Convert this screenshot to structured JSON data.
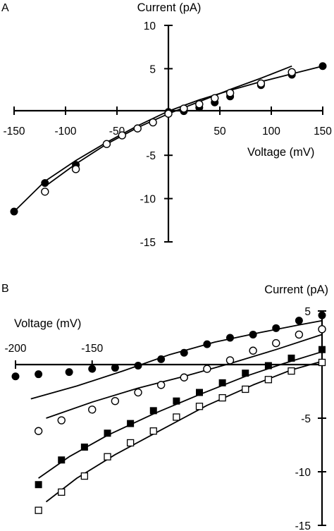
{
  "chart_data": [
    {
      "type": "scatter",
      "panel_label": "A",
      "xlabel": "Voltage (mV)",
      "ylabel": "Current (pA)",
      "xlim": [
        -150,
        150
      ],
      "ylim": [
        -15,
        10
      ],
      "x_ticks": [
        -150,
        -100,
        -50,
        50,
        100,
        150
      ],
      "y_ticks": [
        10,
        5,
        -5,
        -10,
        -15
      ],
      "series": [
        {
          "marker": "filled-circle",
          "points": [
            [
              -150,
              -11.5
            ],
            [
              -120,
              -8.2
            ],
            [
              -90,
              -6.1
            ],
            [
              0,
              0
            ],
            [
              15,
              0.1
            ],
            [
              30,
              0.5
            ],
            [
              45,
              1.1
            ],
            [
              60,
              1.8
            ],
            [
              90,
              3.1
            ],
            [
              120,
              4.3
            ],
            [
              150,
              5.3
            ]
          ]
        },
        {
          "marker": "open-circle",
          "points": [
            [
              -120,
              -9.2
            ],
            [
              -90,
              -6.6
            ],
            [
              -60,
              -3.7
            ],
            [
              -45,
              -2.7
            ],
            [
              -30,
              -1.9
            ],
            [
              -15,
              -1.2
            ],
            [
              0,
              -0.2
            ],
            [
              15,
              0.4
            ],
            [
              30,
              0.9
            ],
            [
              45,
              1.6
            ],
            [
              60,
              2.2
            ],
            [
              90,
              3.3
            ],
            [
              120,
              4.6
            ]
          ]
        }
      ],
      "fits": [
        {
          "style": "solid",
          "points": [
            [
              -150,
              -11.5
            ],
            [
              -120,
              -8.0
            ],
            [
              -90,
              -5.6
            ],
            [
              -60,
              -3.5
            ],
            [
              -30,
              -1.6
            ],
            [
              0,
              0.1
            ],
            [
              30,
              1.4
            ],
            [
              60,
              2.5
            ],
            [
              90,
              3.5
            ],
            [
              120,
              4.4
            ],
            [
              150,
              5.3
            ]
          ]
        },
        {
          "style": "solid",
          "points": [
            [
              -120,
              -8.6
            ],
            [
              -90,
              -6.0
            ],
            [
              -60,
              -3.7
            ],
            [
              -30,
              -1.8
            ],
            [
              0,
              -0.2
            ],
            [
              30,
              1.2
            ],
            [
              60,
              2.6
            ],
            [
              90,
              3.9
            ],
            [
              120,
              5.3
            ]
          ]
        }
      ]
    },
    {
      "type": "scatter",
      "panel_label": "B",
      "xlabel": "Voltage (mV)",
      "ylabel": "Current (pA)",
      "xlim": [
        -200,
        0
      ],
      "ylim": [
        -15,
        5
      ],
      "x_ticks": [
        -200,
        -150
      ],
      "y_ticks": [
        5,
        -5,
        -10,
        -15
      ],
      "series": [
        {
          "marker": "filled-circle",
          "points": [
            [
              -200,
              -1.1
            ],
            [
              -185,
              -0.9
            ],
            [
              -165,
              -0.7
            ],
            [
              -150,
              -0.4
            ],
            [
              -135,
              -0.3
            ],
            [
              -120,
              -0.1
            ],
            [
              -105,
              0.5
            ],
            [
              -90,
              1.1
            ],
            [
              -75,
              1.9
            ],
            [
              -60,
              2.5
            ],
            [
              -45,
              2.8
            ],
            [
              -30,
              3.4
            ],
            [
              -15,
              4.1
            ],
            [
              0,
              4.6
            ]
          ]
        },
        {
          "marker": "open-circle",
          "points": [
            [
              -185,
              -6.2
            ],
            [
              -170,
              -5.2
            ],
            [
              -150,
              -4.2
            ],
            [
              -135,
              -3.4
            ],
            [
              -120,
              -2.6
            ],
            [
              -105,
              -1.9
            ],
            [
              -90,
              -1.2
            ],
            [
              -75,
              -0.4
            ],
            [
              -60,
              0.4
            ],
            [
              -45,
              1.3
            ],
            [
              -30,
              2.0
            ],
            [
              -15,
              2.8
            ],
            [
              0,
              3.3
            ]
          ]
        },
        {
          "marker": "filled-square",
          "points": [
            [
              -185,
              -11.2
            ],
            [
              -170,
              -8.9
            ],
            [
              -155,
              -7.7
            ],
            [
              -140,
              -6.4
            ],
            [
              -125,
              -5.5
            ],
            [
              -110,
              -4.3
            ],
            [
              -95,
              -3.4
            ],
            [
              -80,
              -2.6
            ],
            [
              -65,
              -1.7
            ],
            [
              -50,
              -0.8
            ],
            [
              -35,
              -0.1
            ],
            [
              -20,
              0.6
            ],
            [
              0,
              1.4
            ]
          ]
        },
        {
          "marker": "open-square",
          "points": [
            [
              -185,
              -13.6
            ],
            [
              -170,
              -11.9
            ],
            [
              -155,
              -10.4
            ],
            [
              -140,
              -8.6
            ],
            [
              -125,
              -7.3
            ],
            [
              -110,
              -6.2
            ],
            [
              -95,
              -4.9
            ],
            [
              -80,
              -3.9
            ],
            [
              -65,
              -3.1
            ],
            [
              -50,
              -2.3
            ],
            [
              -35,
              -1.4
            ],
            [
              -20,
              -0.6
            ],
            [
              0,
              0.2
            ]
          ]
        }
      ],
      "fits": [
        {
          "style": "solid",
          "points": [
            [
              -190,
              -3.2
            ],
            [
              -160,
              -2.0
            ],
            [
              -130,
              -0.6
            ],
            [
              -100,
              0.9
            ],
            [
              -70,
              2.1
            ],
            [
              -40,
              3.0
            ],
            [
              -15,
              3.7
            ],
            [
              0,
              4.1
            ]
          ]
        },
        {
          "style": "solid",
          "points": [
            [
              -180,
              -5.0
            ],
            [
              -150,
              -3.5
            ],
            [
              -120,
              -2.2
            ],
            [
              -90,
              -1.1
            ],
            [
              -60,
              0.1
            ],
            [
              -30,
              1.4
            ],
            [
              0,
              2.8
            ]
          ]
        },
        {
          "style": "solid",
          "points": [
            [
              -185,
              -10.6
            ],
            [
              -165,
              -8.6
            ],
            [
              -140,
              -6.6
            ],
            [
              -110,
              -4.6
            ],
            [
              -80,
              -2.8
            ],
            [
              -50,
              -1.1
            ],
            [
              -25,
              0.1
            ],
            [
              0,
              1.2
            ]
          ]
        },
        {
          "style": "solid",
          "points": [
            [
              -180,
              -12.8
            ],
            [
              -160,
              -10.6
            ],
            [
              -135,
              -8.4
            ],
            [
              -105,
              -6.1
            ],
            [
              -75,
              -3.8
            ],
            [
              -45,
              -1.9
            ],
            [
              -20,
              -0.5
            ],
            [
              0,
              0.3
            ]
          ]
        }
      ]
    }
  ]
}
